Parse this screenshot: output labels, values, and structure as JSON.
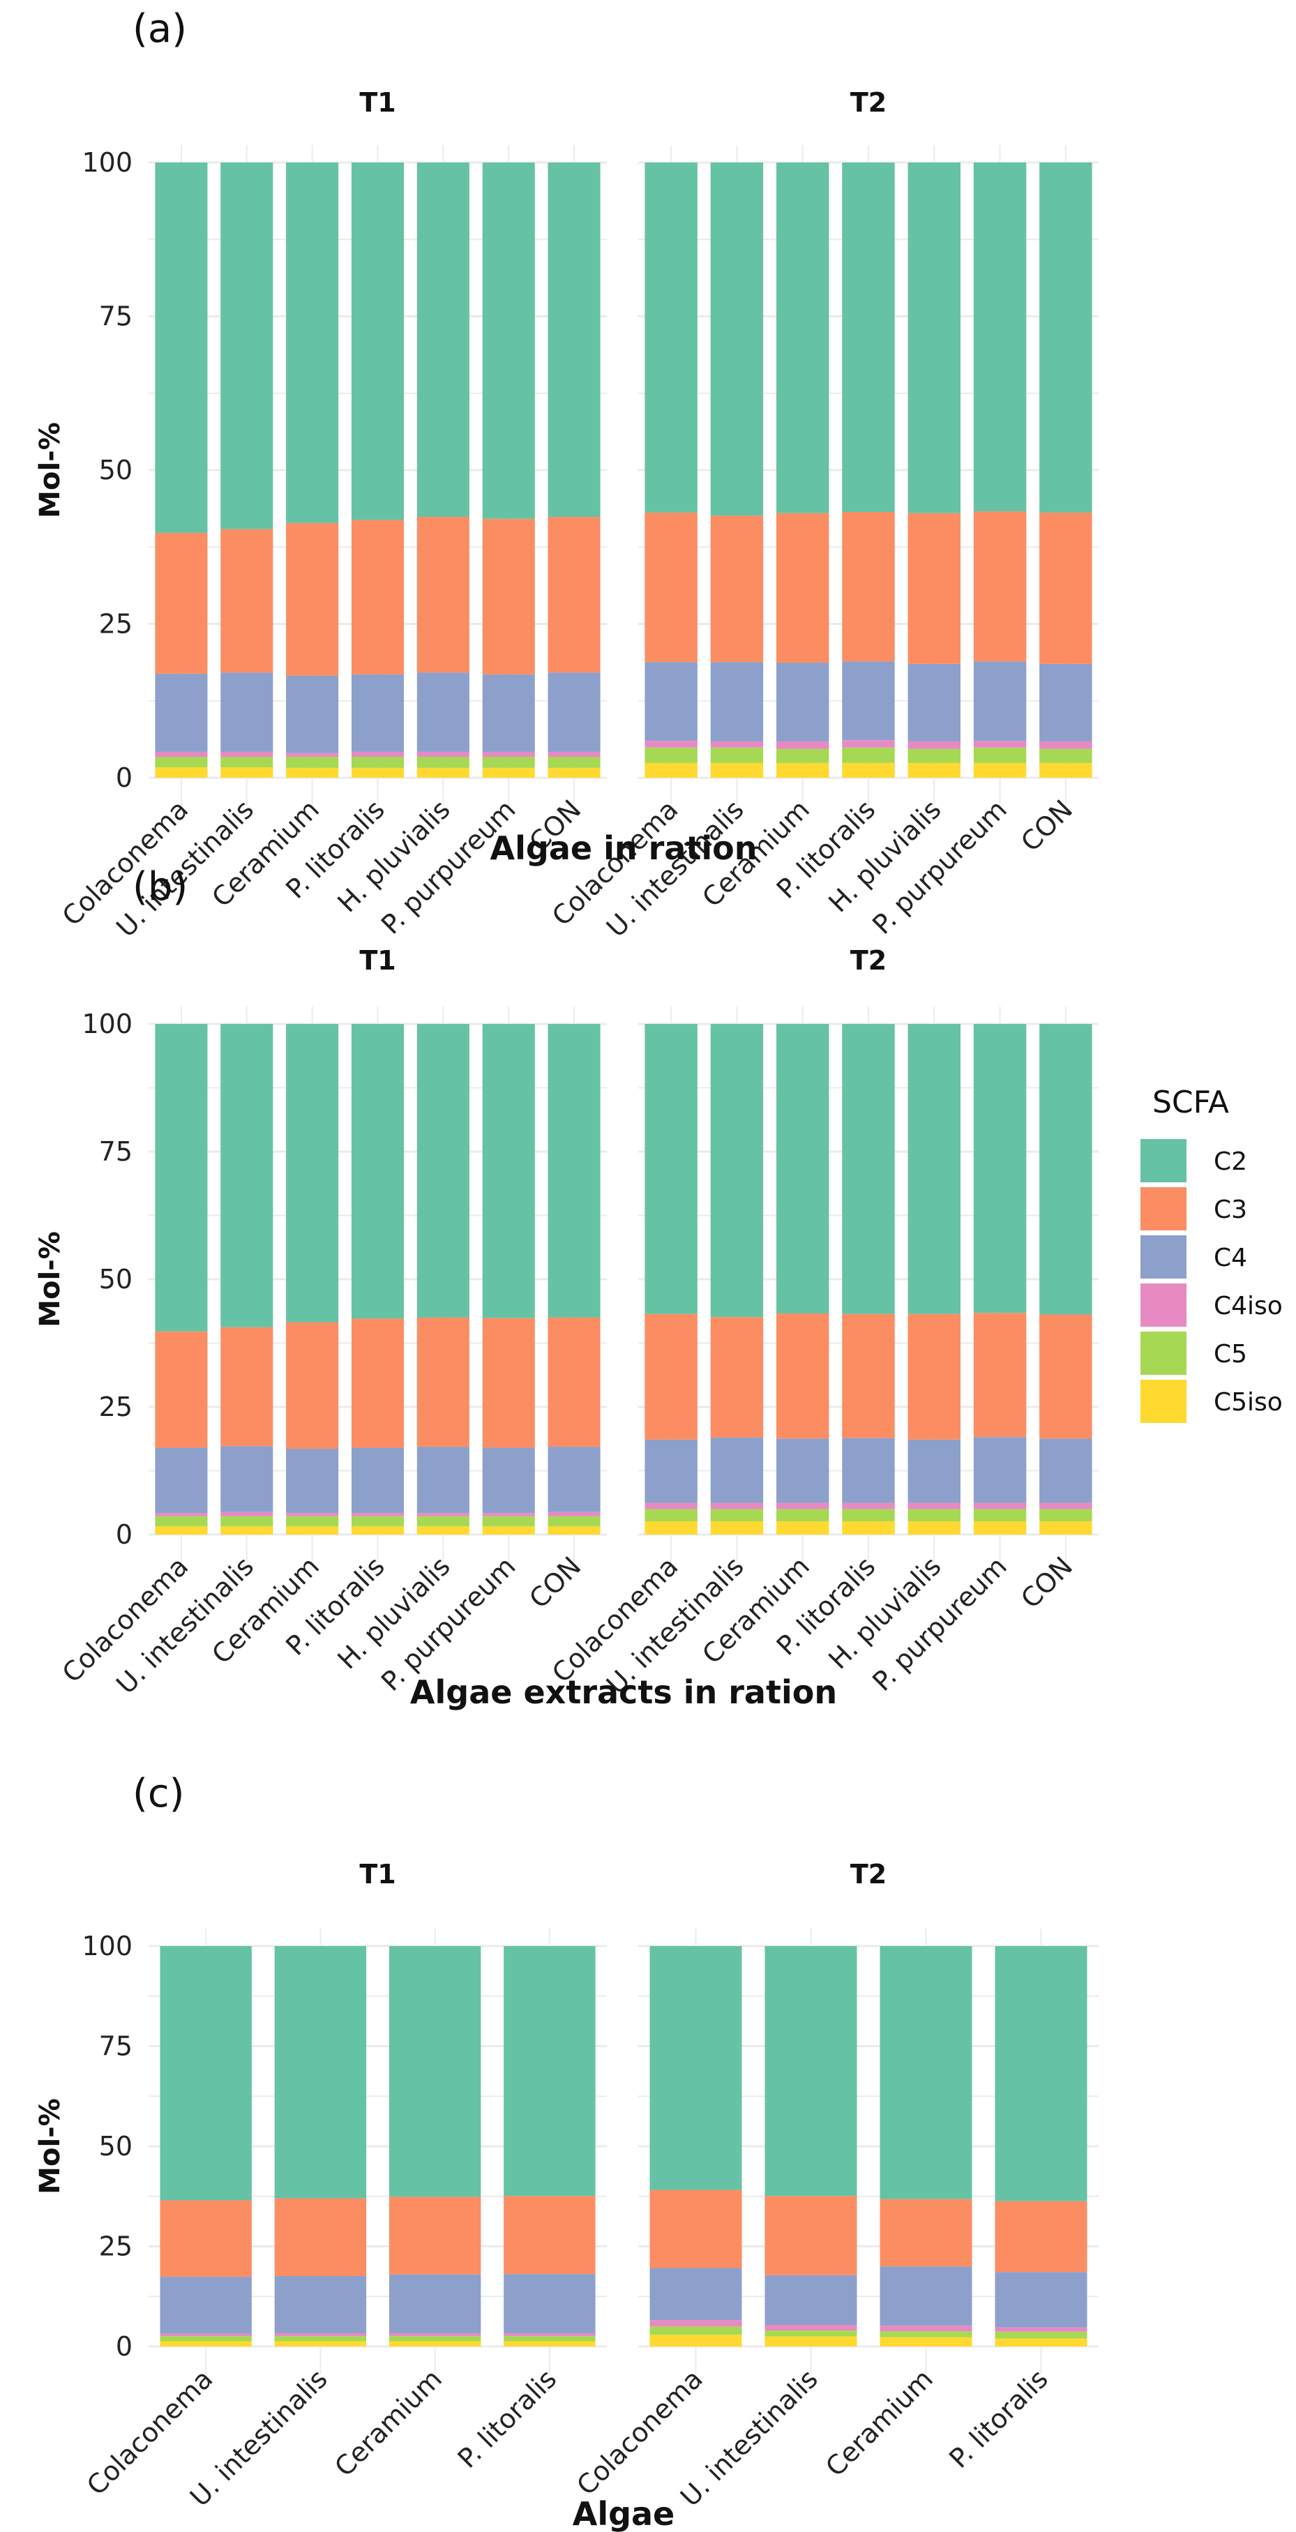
{
  "legend": {
    "title": "SCFA",
    "placement": "right",
    "entries": [
      {
        "name": "C2",
        "color": "#66C2A5"
      },
      {
        "name": "C3",
        "color": "#FC8D62"
      },
      {
        "name": "C4",
        "color": "#8DA0CB"
      },
      {
        "name": "C4iso",
        "color": "#E78AC3"
      },
      {
        "name": "C5",
        "color": "#A6D854"
      },
      {
        "name": "C5iso",
        "color": "#FFD92F"
      }
    ]
  },
  "chart_data": [
    {
      "type": "bar",
      "stacked": true,
      "panel_label": "(a)",
      "xlabel": "Algae in ration",
      "ylabel": "Mol-%",
      "ylim": [
        0,
        100
      ],
      "yticks": [
        0,
        25,
        50,
        75,
        100
      ],
      "grid": true,
      "categories": [
        "Colaconema",
        "U. intestinalis",
        "Ceramium",
        "P. litoralis",
        "H. pluvialis",
        "P. purpureum",
        "CON"
      ],
      "facets": [
        {
          "name": "T1",
          "series": [
            {
              "name": "C5iso",
              "values": [
                1.7,
                1.7,
                1.6,
                1.6,
                1.6,
                1.6,
                1.6
              ]
            },
            {
              "name": "C5",
              "values": [
                1.7,
                1.7,
                1.8,
                1.8,
                1.8,
                1.8,
                1.8
              ]
            },
            {
              "name": "C4iso",
              "values": [
                0.8,
                0.8,
                0.6,
                0.8,
                0.8,
                0.8,
                0.8
              ]
            },
            {
              "name": "C4",
              "values": [
                12.7,
                12.9,
                12.6,
                12.6,
                12.9,
                12.6,
                12.9
              ]
            },
            {
              "name": "C3",
              "values": [
                22.9,
                23.3,
                24.8,
                25.1,
                25.3,
                25.3,
                25.3
              ]
            },
            {
              "name": "C2",
              "values": [
                60.2,
                59.6,
                58.6,
                58.1,
                57.6,
                57.9,
                57.6
              ]
            }
          ]
        },
        {
          "name": "T2",
          "series": [
            {
              "name": "C5iso",
              "values": [
                2.4,
                2.4,
                2.4,
                2.4,
                2.4,
                2.4,
                2.4
              ]
            },
            {
              "name": "C5",
              "values": [
                2.5,
                2.5,
                2.3,
                2.5,
                2.3,
                2.5,
                2.3
              ]
            },
            {
              "name": "C4iso",
              "values": [
                1.1,
                1.0,
                1.2,
                1.2,
                1.2,
                1.1,
                1.2
              ]
            },
            {
              "name": "C4",
              "values": [
                12.8,
                12.9,
                12.8,
                12.8,
                12.6,
                12.9,
                12.6
              ]
            },
            {
              "name": "C3",
              "values": [
                24.3,
                23.8,
                24.3,
                24.3,
                24.5,
                24.4,
                24.6
              ]
            },
            {
              "name": "C2",
              "values": [
                56.9,
                57.4,
                57.0,
                56.8,
                57.0,
                56.7,
                56.9
              ]
            }
          ]
        }
      ]
    },
    {
      "type": "bar",
      "stacked": true,
      "panel_label": "(b)",
      "xlabel": "Algae extracts in ration",
      "ylabel": "Mol-%",
      "ylim": [
        0,
        100
      ],
      "yticks": [
        0,
        25,
        50,
        75,
        100
      ],
      "grid": true,
      "categories": [
        "Colaconema",
        "U. intestinalis",
        "Ceramium",
        "P. litoralis",
        "H. pluvialis",
        "P. purpureum",
        "CON"
      ],
      "facets": [
        {
          "name": "T1",
          "series": [
            {
              "name": "C5iso",
              "values": [
                1.6,
                1.6,
                1.6,
                1.6,
                1.6,
                1.6,
                1.6
              ]
            },
            {
              "name": "C5",
              "values": [
                2.0,
                2.0,
                2.0,
                2.0,
                2.0,
                2.0,
                2.0
              ]
            },
            {
              "name": "C4iso",
              "values": [
                0.6,
                0.8,
                0.6,
                0.6,
                0.6,
                0.6,
                0.8
              ]
            },
            {
              "name": "C4",
              "values": [
                12.8,
                12.9,
                12.6,
                12.8,
                13.0,
                12.8,
                12.8
              ]
            },
            {
              "name": "C3",
              "values": [
                22.8,
                23.3,
                24.8,
                25.3,
                25.3,
                25.4,
                25.3
              ]
            },
            {
              "name": "C2",
              "values": [
                60.2,
                59.4,
                58.4,
                57.7,
                57.5,
                57.6,
                57.5
              ]
            }
          ]
        },
        {
          "name": "T2",
          "series": [
            {
              "name": "C5iso",
              "values": [
                2.6,
                2.6,
                2.6,
                2.6,
                2.6,
                2.6,
                2.6
              ]
            },
            {
              "name": "C5",
              "values": [
                2.4,
                2.4,
                2.4,
                2.4,
                2.4,
                2.4,
                2.4
              ]
            },
            {
              "name": "C4iso",
              "values": [
                1.2,
                1.2,
                1.2,
                1.2,
                1.2,
                1.2,
                1.2
              ]
            },
            {
              "name": "C4",
              "values": [
                12.4,
                12.8,
                12.6,
                12.7,
                12.4,
                12.9,
                12.6
              ]
            },
            {
              "name": "C3",
              "values": [
                24.6,
                23.6,
                24.5,
                24.3,
                24.6,
                24.3,
                24.3
              ]
            },
            {
              "name": "C2",
              "values": [
                56.8,
                57.4,
                56.7,
                56.8,
                56.8,
                56.6,
                56.9
              ]
            }
          ]
        }
      ]
    },
    {
      "type": "bar",
      "stacked": true,
      "panel_label": "(c)",
      "xlabel": "Algae",
      "ylabel": "Mol-%",
      "ylim": [
        0,
        100
      ],
      "yticks": [
        0,
        25,
        50,
        75,
        100
      ],
      "grid": true,
      "categories": [
        "Colaconema",
        "U. intestinalis",
        "Ceramium",
        "P. litoralis"
      ],
      "facets": [
        {
          "name": "T1",
          "series": [
            {
              "name": "C5iso",
              "values": [
                1.3,
                1.3,
                1.3,
                1.3
              ]
            },
            {
              "name": "C5",
              "values": [
                1.3,
                1.3,
                1.3,
                1.3
              ]
            },
            {
              "name": "C4iso",
              "values": [
                0.6,
                0.7,
                0.7,
                0.7
              ]
            },
            {
              "name": "C4",
              "values": [
                14.2,
                14.3,
                14.7,
                14.8
              ]
            },
            {
              "name": "C3",
              "values": [
                19.1,
                19.4,
                19.4,
                19.5
              ]
            },
            {
              "name": "C2",
              "values": [
                63.5,
                63.0,
                62.6,
                62.4
              ]
            }
          ]
        },
        {
          "name": "T2",
          "series": [
            {
              "name": "C5iso",
              "values": [
                2.9,
                2.5,
                2.3,
                2.0
              ]
            },
            {
              "name": "C5",
              "values": [
                2.1,
                1.5,
                1.5,
                1.7
              ]
            },
            {
              "name": "C4iso",
              "values": [
                1.6,
                1.4,
                1.4,
                1.1
              ]
            },
            {
              "name": "C4",
              "values": [
                13.0,
                12.4,
                14.8,
                13.8
              ]
            },
            {
              "name": "C3",
              "values": [
                19.5,
                19.8,
                16.8,
                17.7
              ]
            },
            {
              "name": "C2",
              "values": [
                60.9,
                62.4,
                63.2,
                63.7
              ]
            }
          ]
        }
      ]
    }
  ]
}
